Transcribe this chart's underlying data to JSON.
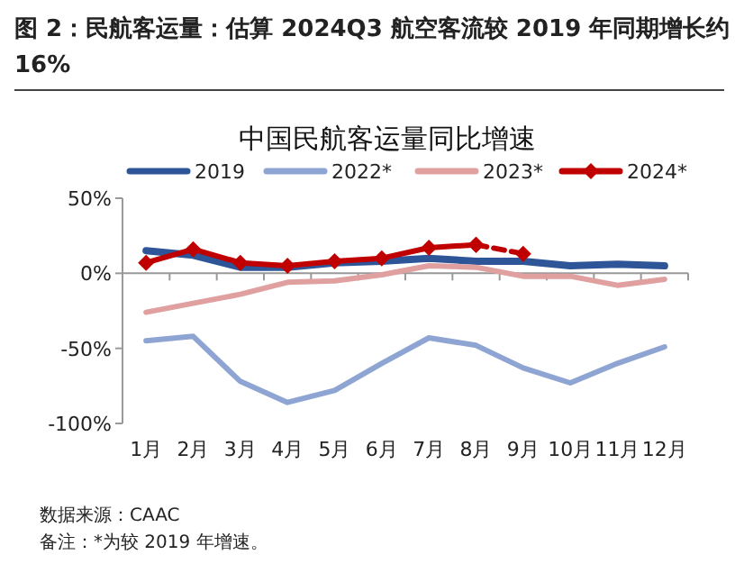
{
  "chart_data": {
    "type": "line",
    "title": "图 2：民航客运量：估算 2024Q3 航空客流较 2019 年同期增长约 16%",
    "subtitle": "中国民航客运量同比增速",
    "categories": [
      "1月",
      "2月",
      "3月",
      "4月",
      "5月",
      "6月",
      "7月",
      "8月",
      "9月",
      "10月",
      "11月",
      "12月"
    ],
    "series": [
      {
        "name": "2019",
        "color": "#2e5597",
        "values": [
          15,
          12,
          4,
          4,
          7,
          8,
          10,
          8,
          8,
          5,
          6,
          5
        ]
      },
      {
        "name": "2022*",
        "color": "#8ea5d3",
        "values": [
          -45,
          -42,
          -72,
          -86,
          -78,
          -60,
          -43,
          -48,
          -63,
          -73,
          -60,
          -49
        ]
      },
      {
        "name": "2023*",
        "color": "#e0a0a0",
        "values": [
          -26,
          -20,
          -14,
          -6,
          -5,
          -1,
          5,
          4,
          -2,
          -2,
          -8,
          -4
        ]
      },
      {
        "name": "2024*",
        "color": "#c00000",
        "marker": "diamond",
        "values": [
          7,
          16,
          7,
          5,
          8,
          10,
          17,
          19,
          null,
          null,
          null,
          null
        ]
      },
      {
        "color": "#c00000",
        "marker": "diamond",
        "line_style": "dashed",
        "values": [
          null,
          null,
          null,
          null,
          null,
          null,
          null,
          19,
          13,
          null,
          null,
          null
        ]
      }
    ],
    "ylim": [
      -100,
      50
    ],
    "yticks": [
      {
        "value": 50,
        "label": "50%"
      },
      {
        "value": 0,
        "label": "0%"
      },
      {
        "value": -50,
        "label": "-50%"
      },
      {
        "value": -100,
        "label": "-100%"
      }
    ],
    "legend": "top",
    "annotations": [
      "数据来源：CAAC",
      "备注：*为较 2019 年增速。"
    ]
  }
}
